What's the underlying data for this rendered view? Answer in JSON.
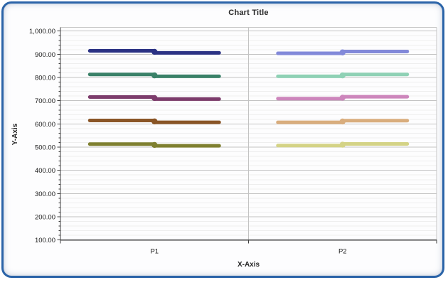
{
  "colors": {
    "frame_border": "#2b64a8",
    "axis_line": "#404040",
    "major_gridline": "#c3c3c3",
    "minor_gridline": "#eeeeee",
    "plot_border": "#c6c6c6",
    "tick_text": "#1a1a1a",
    "title_text": "#262626"
  },
  "chart_data": {
    "type": "line",
    "title": "Chart Title",
    "xlabel": "X-Axis",
    "ylabel": "Y-Axis",
    "categories": [
      "P1",
      "P2"
    ],
    "y_axis": {
      "min": 100,
      "max": 1000,
      "major_step": 100,
      "minor_step": 20,
      "tick_labels": [
        "1,000.00",
        "900.00",
        "800.00",
        "700.00",
        "600.00",
        "500.00",
        "400.00",
        "300.00",
        "200.00",
        "100.00"
      ]
    },
    "grid": {
      "major": true,
      "minor": true,
      "category_separator": true
    },
    "legend": "none",
    "marker": "circle-at-category-center",
    "series": [
      {
        "category": "P1",
        "color": "#2b3284",
        "values": [
          915,
          906
        ]
      },
      {
        "category": "P1",
        "color": "#3a8168",
        "values": [
          813,
          805
        ]
      },
      {
        "category": "P1",
        "color": "#7d3c6c",
        "values": [
          716,
          707
        ]
      },
      {
        "category": "P1",
        "color": "#8a5526",
        "values": [
          615,
          607
        ]
      },
      {
        "category": "P1",
        "color": "#7f8030",
        "values": [
          513,
          506
        ]
      },
      {
        "category": "P2",
        "color": "#8289d9",
        "values": [
          904,
          912
        ]
      },
      {
        "category": "P2",
        "color": "#8fd1b5",
        "values": [
          805,
          813
        ]
      },
      {
        "category": "P2",
        "color": "#cd86bc",
        "values": [
          709,
          717
        ]
      },
      {
        "category": "P2",
        "color": "#d9ad7d",
        "values": [
          607,
          614
        ]
      },
      {
        "category": "P2",
        "color": "#d4d386",
        "values": [
          507,
          514
        ]
      }
    ]
  }
}
